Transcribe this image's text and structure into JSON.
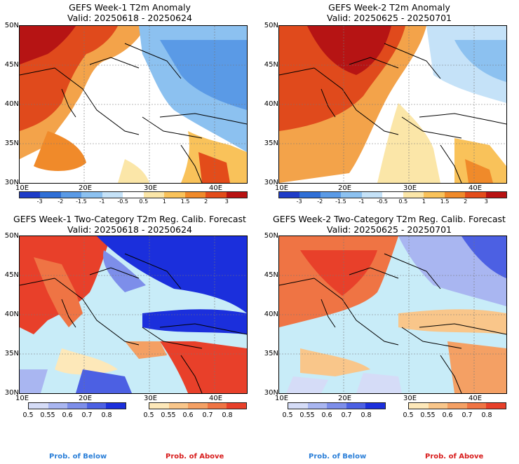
{
  "panels": [
    {
      "title": "GEFS Week-1 T2m Anomaly",
      "valid": "Valid: 20250618 - 20250624"
    },
    {
      "title": "GEFS Week-2 T2m Anomaly",
      "valid": "Valid: 20250625 - 20250701"
    },
    {
      "title": "GEFS Week-1 Two-Category T2m Reg. Calib. Forecast",
      "valid": "Valid: 20250618 - 20250624"
    },
    {
      "title": "GEFS Week-2 Two-Category T2m Reg. Calib. Forecast",
      "valid": "Valid: 20250625 - 20250701"
    }
  ],
  "lat_labels": [
    "50N",
    "45N",
    "40N",
    "35N",
    "30N"
  ],
  "lon_labels": [
    "10E",
    "20E",
    "30E",
    "40E"
  ],
  "anomaly_scale": {
    "labels": [
      "-3",
      "-2",
      "-1.5",
      "-1",
      "-0.5",
      "0.5",
      "1",
      "1.5",
      "2",
      "3"
    ],
    "colors": [
      "#1e3cc8",
      "#2f6fd6",
      "#5a9ae6",
      "#8cc1f0",
      "#c5e2f8",
      "#ffffff",
      "#fbe6a8",
      "#f9c25a",
      "#f08a2a",
      "#e34c1a",
      "#b81212"
    ]
  },
  "below_scale": {
    "labels": [
      "0.5",
      "0.55",
      "0.6",
      "0.7",
      "0.8"
    ],
    "colors": [
      "#d5dcf7",
      "#a9b6f1",
      "#7d8eea",
      "#4c60e3",
      "#1b2fdc"
    ]
  },
  "above_scale": {
    "labels": [
      "0.5",
      "0.55",
      "0.6",
      "0.7",
      "0.8"
    ],
    "colors": [
      "#fde8b9",
      "#f9c68a",
      "#f4a064",
      "#ef7444",
      "#e8402a"
    ]
  },
  "legend": {
    "below": "Prob. of Below",
    "above": "Prob. of Above",
    "below_color": "#2b7fd8",
    "above_color": "#d81d1d"
  },
  "map_colors": {
    "land": "#ffffff",
    "sea_top": "#ffffff",
    "sea_prob": "#c8ecf8"
  }
}
